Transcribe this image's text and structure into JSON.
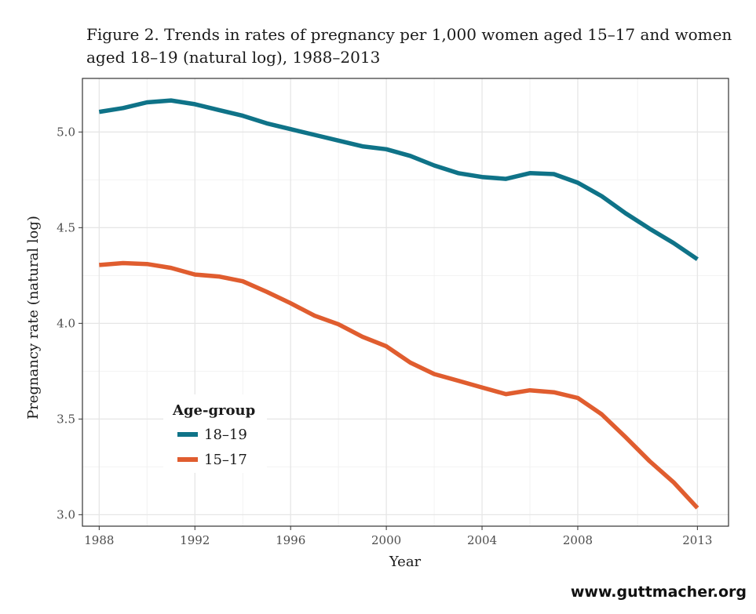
{
  "chart_data": {
    "type": "line",
    "title": "Figure 2. Trends in rates of pregnancy per 1,000 women aged 15–17 and women aged 18–19 (natural log), 1988–2013",
    "xlabel": "Year",
    "ylabel": "Pregnancy rate (natural log)",
    "xlim": [
      1987.3,
      2014.3
    ],
    "ylim": [
      2.94,
      5.28
    ],
    "x_ticks": [
      1988,
      1992,
      1996,
      2000,
      2004,
      2008,
      2013
    ],
    "x_tick_labels": [
      "1988",
      "1992",
      "1996",
      "2000",
      "2004",
      "2008",
      "2013"
    ],
    "y_ticks": [
      3.0,
      3.5,
      4.0,
      4.5,
      5.0
    ],
    "y_tick_labels": [
      "3.0",
      "3.5",
      "4.0",
      "4.5",
      "5.0"
    ],
    "grid": true,
    "legend_title": "Age-group",
    "legend_position": "bottom-left",
    "x": [
      1988,
      1989,
      1990,
      1991,
      1992,
      1993,
      1994,
      1995,
      1996,
      1997,
      1998,
      1999,
      2000,
      2001,
      2002,
      2003,
      2004,
      2005,
      2006,
      2007,
      2008,
      2009,
      2010,
      2011,
      2012,
      2013
    ],
    "series": [
      {
        "name": "18–19",
        "color": "#0f7388",
        "values": [
          5.105,
          5.125,
          5.155,
          5.165,
          5.145,
          5.115,
          5.085,
          5.045,
          5.015,
          4.985,
          4.955,
          4.925,
          4.91,
          4.875,
          4.825,
          4.785,
          4.765,
          4.755,
          4.785,
          4.78,
          4.735,
          4.665,
          4.575,
          4.495,
          4.42,
          4.335
        ]
      },
      {
        "name": "15–17",
        "color": "#e05d2f",
        "values": [
          4.305,
          4.315,
          4.31,
          4.29,
          4.255,
          4.245,
          4.22,
          4.165,
          4.105,
          4.04,
          3.995,
          3.93,
          3.88,
          3.795,
          3.735,
          3.7,
          3.665,
          3.63,
          3.65,
          3.64,
          3.61,
          3.525,
          3.405,
          3.28,
          3.17,
          3.035
        ]
      }
    ]
  },
  "source": "www.guttmacher.org"
}
